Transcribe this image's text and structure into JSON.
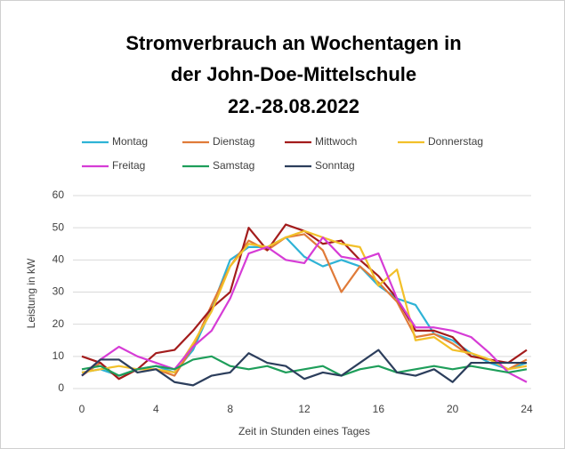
{
  "chart_data": {
    "type": "line",
    "title": [
      "Stromverbrauch an Wochentagen in",
      "der John-Doe-Mittelschule",
      "22.-28.08.2022"
    ],
    "x_label": "Zeit in Stunden eines Tages",
    "y_label": "Leistung in kW",
    "x": [
      0,
      1,
      2,
      3,
      4,
      5,
      6,
      7,
      8,
      9,
      10,
      11,
      12,
      13,
      14,
      15,
      16,
      17,
      18,
      19,
      20,
      21,
      22,
      23,
      24
    ],
    "xlim": [
      0,
      24
    ],
    "xticks": [
      0,
      4,
      8,
      12,
      16,
      20,
      24
    ],
    "ylim": [
      0,
      60
    ],
    "yticks": [
      0,
      10,
      20,
      30,
      40,
      50,
      60
    ],
    "grid": true,
    "legend": "top",
    "series": [
      {
        "name": "Montag",
        "color": "#2eb3d6",
        "values": [
          5,
          6,
          4,
          6,
          7,
          5,
          12,
          25,
          40,
          44,
          44,
          47,
          41,
          38,
          40,
          38,
          32,
          28,
          26,
          17,
          15,
          11,
          8,
          6,
          8
        ]
      },
      {
        "name": "Dienstag",
        "color": "#e07b39",
        "values": [
          4,
          8,
          3,
          6,
          6,
          4,
          13,
          26,
          38,
          46,
          43,
          47,
          48,
          43,
          30,
          38,
          33,
          27,
          16,
          17,
          14,
          10,
          9,
          6,
          9
        ]
      },
      {
        "name": "Mittwoch",
        "color": "#a31c1c",
        "values": [
          10,
          8,
          3,
          6,
          11,
          12,
          18,
          25,
          30,
          50,
          43,
          51,
          49,
          45,
          46,
          40,
          35,
          28,
          18,
          18,
          16,
          10,
          9,
          8,
          12
        ]
      },
      {
        "name": "Donnerstag",
        "color": "#f2c029",
        "values": [
          5,
          6,
          7,
          6,
          6,
          5,
          14,
          24,
          38,
          45,
          44,
          47,
          49,
          47,
          45,
          44,
          32,
          37,
          15,
          16,
          12,
          11,
          9,
          6,
          7
        ]
      },
      {
        "name": "Freitag",
        "color": "#d63cd6",
        "values": [
          4,
          9,
          13,
          10,
          8,
          6,
          13,
          18,
          28,
          42,
          44,
          40,
          39,
          47,
          41,
          40,
          42,
          28,
          19,
          19,
          18,
          16,
          11,
          5,
          2
        ]
      },
      {
        "name": "Samstag",
        "color": "#1e9e5a",
        "values": [
          6,
          7,
          4,
          6,
          7,
          6,
          9,
          10,
          7,
          6,
          7,
          5,
          6,
          7,
          4,
          6,
          7,
          5,
          6,
          7,
          6,
          7,
          6,
          5,
          6
        ]
      },
      {
        "name": "Sonntag",
        "color": "#2c3e5c",
        "values": [
          4,
          9,
          9,
          5,
          6,
          2,
          1,
          4,
          5,
          11,
          8,
          7,
          3,
          5,
          4,
          8,
          12,
          5,
          4,
          6,
          2,
          8,
          8,
          8,
          8
        ]
      }
    ]
  }
}
